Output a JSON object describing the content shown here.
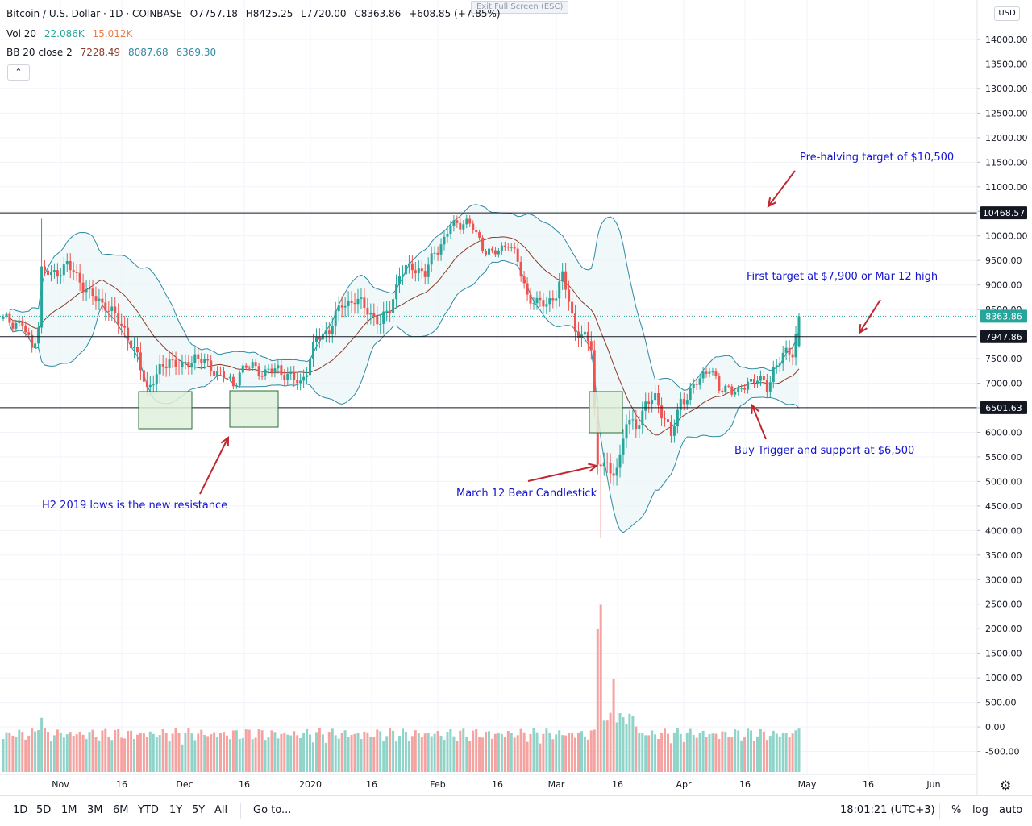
{
  "header": {
    "title": "Bitcoin / U.S. Dollar · 1D · COINBASE",
    "open": "O7757.18",
    "high": "H8425.25",
    "low": "L7720.00",
    "close": "C8363.86",
    "change": "+608.85 (+7.85%)",
    "exit_fullscreen": "Exit Full Screen (ESC)"
  },
  "indicators": {
    "vol_label": "Vol 20",
    "vol_value1": "22.086K",
    "vol_value2": "15.012K",
    "bb_label": "BB 20 close 2",
    "bb_basis": "7228.49",
    "bb_upper": "8087.68",
    "bb_lower": "6369.30"
  },
  "price_axis": {
    "currency": "USD",
    "ticks": [
      "14000.00",
      "13500.00",
      "13000.00",
      "12500.00",
      "12000.00",
      "11500.00",
      "11000.00",
      "10500.00",
      "10000.00",
      "9500.00",
      "9000.00",
      "8500.00",
      "8000.00",
      "7500.00",
      "7000.00",
      "6500.00",
      "6000.00",
      "5500.00",
      "5000.00",
      "4500.00",
      "4000.00",
      "3500.00",
      "3000.00",
      "2500.00",
      "2000.00",
      "1500.00",
      "1000.00",
      "500.00",
      "0.00",
      "-500.00"
    ],
    "price_tags": [
      {
        "label": "10468.57",
        "value": 10468.57,
        "color": "#131722"
      },
      {
        "label": "8363.86",
        "value": 8363.86,
        "color": "#26a69a"
      },
      {
        "label": "7947.86",
        "value": 7947.86,
        "color": "#131722"
      },
      {
        "label": "6501.63",
        "value": 6501.63,
        "color": "#131722"
      }
    ]
  },
  "time_axis": {
    "ticks": [
      "Nov",
      "16",
      "Dec",
      "16",
      "2020",
      "16",
      "Feb",
      "16",
      "Mar",
      "16",
      "Apr",
      "16",
      "May",
      "16",
      "Jun"
    ]
  },
  "annotations": {
    "pre_halving": "Pre-halving target of $10,500",
    "first_target": "First target at $7,900 or Mar 12 high",
    "buy_trigger": "Buy Trigger and support at $6,500",
    "march12": "March 12 Bear Candlestick",
    "h2_lows": "H2 2019 lows is the new resistance"
  },
  "toolbar": {
    "ranges": [
      "1D",
      "5D",
      "1M",
      "3M",
      "6M",
      "YTD",
      "1Y",
      "5Y",
      "All"
    ],
    "goto": "Go to...",
    "time": "18:01:21 (UTC+3)",
    "percent": "%",
    "log": "log",
    "auto": "auto"
  },
  "colors": {
    "up": "#26a69a",
    "down": "#ef5350",
    "bb_band": "#2f8aa3",
    "bb_basis": "#8d3d2a",
    "annotation_text": "#1515d0",
    "arrow": "#c0282f",
    "box_fill": "#dff0dc",
    "box_stroke": "#2e6e3a"
  },
  "chart_data": {
    "type": "candlestick",
    "title": "Bitcoin / U.S. Dollar · 1D · COINBASE",
    "y_range": [
      -700,
      14400
    ],
    "horizontal_levels": [
      10468.57,
      7947.86,
      6501.63
    ],
    "candles_approx": [
      {
        "date": "Oct 14",
        "o": 8350,
        "h": 8450,
        "l": 8250,
        "c": 8290
      },
      {
        "date": "Oct 21",
        "o": 8250,
        "h": 8300,
        "l": 7350,
        "c": 7450
      },
      {
        "date": "Oct 25",
        "o": 7450,
        "h": 10350,
        "l": 7400,
        "c": 9250
      },
      {
        "date": "Nov 1",
        "o": 9250,
        "h": 9500,
        "l": 8900,
        "c": 9350
      },
      {
        "date": "Nov 15",
        "o": 8700,
        "h": 8900,
        "l": 8400,
        "c": 8600
      },
      {
        "date": "Nov 22",
        "o": 8100,
        "h": 8200,
        "l": 6800,
        "c": 7100
      },
      {
        "date": "Nov 25",
        "o": 7100,
        "h": 7300,
        "l": 6550,
        "c": 7150
      },
      {
        "date": "Dec 1",
        "o": 7550,
        "h": 7800,
        "l": 7350,
        "c": 7400
      },
      {
        "date": "Dec 17",
        "o": 7000,
        "h": 7100,
        "l": 6500,
        "c": 6700
      },
      {
        "date": "Dec 18",
        "o": 6700,
        "h": 7400,
        "l": 6650,
        "c": 7300
      },
      {
        "date": "Jan 1",
        "o": 7200,
        "h": 7250,
        "l": 6900,
        "c": 6950
      },
      {
        "date": "Jan 14",
        "o": 8100,
        "h": 8900,
        "l": 8050,
        "c": 8800
      },
      {
        "date": "Feb 1",
        "o": 9400,
        "h": 9500,
        "l": 9200,
        "c": 9350
      },
      {
        "date": "Feb 12",
        "o": 10200,
        "h": 10500,
        "l": 10100,
        "c": 10350
      },
      {
        "date": "Feb 26",
        "o": 9300,
        "h": 9350,
        "l": 8600,
        "c": 8800
      },
      {
        "date": "Mar 8",
        "o": 8000,
        "h": 8100,
        "l": 7800,
        "c": 7900
      },
      {
        "date": "Mar 12",
        "o": 7900,
        "h": 7950,
        "l": 4800,
        "c": 4900
      },
      {
        "date": "Mar 13",
        "o": 4900,
        "h": 5900,
        "l": 3850,
        "c": 5600
      },
      {
        "date": "Mar 20",
        "o": 5900,
        "h": 6900,
        "l": 5800,
        "c": 6200
      },
      {
        "date": "Apr 1",
        "o": 6400,
        "h": 6700,
        "l": 6200,
        "c": 6650
      },
      {
        "date": "Apr 7",
        "o": 7300,
        "h": 7450,
        "l": 7100,
        "c": 7200
      },
      {
        "date": "Apr 22",
        "o": 7000,
        "h": 7200,
        "l": 6950,
        "c": 7150
      },
      {
        "date": "Apr 29",
        "o": 7757.18,
        "h": 8425.25,
        "l": 7720,
        "c": 8363.86
      }
    ],
    "volume_peak": 3000
  }
}
